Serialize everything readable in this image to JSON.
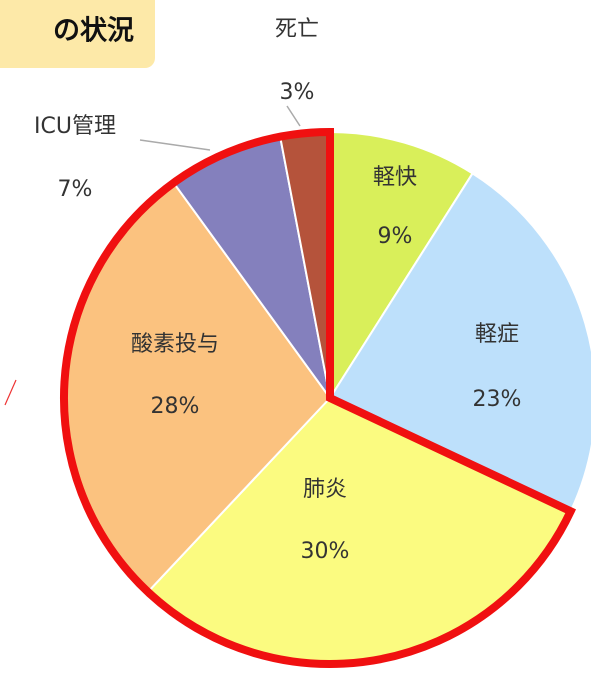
{
  "chart_data": {
    "type": "pie",
    "title": "の状況",
    "categories": [
      "軽快",
      "軽症",
      "肺炎",
      "酸素投与",
      "ICU管理",
      "死亡"
    ],
    "values": [
      9,
      23,
      30,
      28,
      7,
      3
    ],
    "value_labels": [
      "9%",
      "23%",
      "30%",
      "28%",
      "7%",
      "3%"
    ],
    "colors": [
      "#d9ef5a",
      "#bde0fb",
      "#fbfb80",
      "#fbc27f",
      "#8480bd",
      "#b5533b"
    ]
  }
}
